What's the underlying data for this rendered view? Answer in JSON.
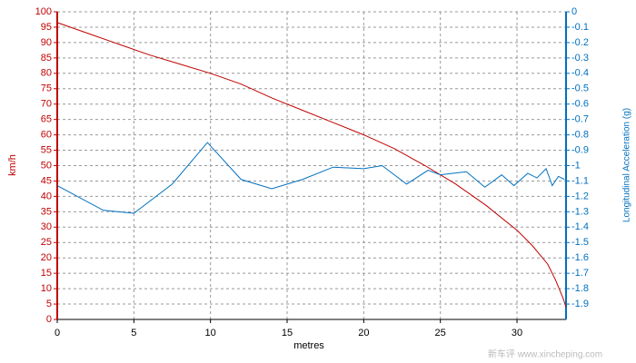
{
  "chart_data": {
    "type": "line",
    "x_label": "metres",
    "y_label": "km/h",
    "y2_label": "Longitudinal Acceleration (g)",
    "watermark": "新车评 www.xincheping.com",
    "xlim": [
      0,
      33.2
    ],
    "xticks": [
      0,
      5,
      10,
      15,
      20,
      25,
      30
    ],
    "ylim": [
      0,
      100
    ],
    "yticks": [
      0,
      5,
      10,
      15,
      20,
      25,
      30,
      35,
      40,
      45,
      50,
      55,
      60,
      65,
      70,
      75,
      80,
      85,
      90,
      95,
      100
    ],
    "y2lim": [
      -2,
      0
    ],
    "y2ticks": [
      0,
      -0.1,
      -0.2,
      -0.3,
      -0.4,
      -0.5,
      -0.6,
      -0.7,
      -0.8,
      -0.9,
      -1,
      -1.1,
      -1.2,
      -1.3,
      -1.4,
      -1.5,
      -1.6,
      -1.7,
      -1.8,
      -1.9
    ],
    "grid": true,
    "y_color": "#c00000",
    "y2_color": "#0070c0",
    "series": [
      {
        "name": "km/h",
        "color": "#c00000",
        "x": [
          0,
          2,
          4,
          6,
          8,
          10,
          12,
          14,
          16,
          18,
          20,
          22,
          24,
          26,
          28,
          30,
          31,
          32,
          32.5,
          33,
          33.2
        ],
        "values": [
          96.5,
          93,
          89.5,
          86,
          83,
          80,
          76.5,
          72,
          68,
          64,
          60,
          55.5,
          50,
          44,
          37,
          29,
          24,
          18,
          13,
          7,
          4
        ]
      },
      {
        "name": "Longitudinal Acceleration (g)",
        "color": "#0070c0",
        "axis": "y2",
        "x": [
          0,
          3,
          5,
          7.5,
          9.8,
          12,
          14,
          16,
          18,
          20,
          21.2,
          22.8,
          24.2,
          25,
          26.7,
          27.9,
          29,
          29.8,
          30.7,
          31.3,
          31.9,
          32.3,
          32.7,
          33.1
        ],
        "values": [
          -1.13,
          -1.29,
          -1.31,
          -1.12,
          -0.85,
          -1.09,
          -1.15,
          -1.09,
          -1.01,
          -1.02,
          -1,
          -1.12,
          -1.03,
          -1.06,
          -1.04,
          -1.14,
          -1.06,
          -1.13,
          -1.05,
          -1.08,
          -1.02,
          -1.13,
          -1.07,
          -1.09
        ]
      }
    ]
  }
}
